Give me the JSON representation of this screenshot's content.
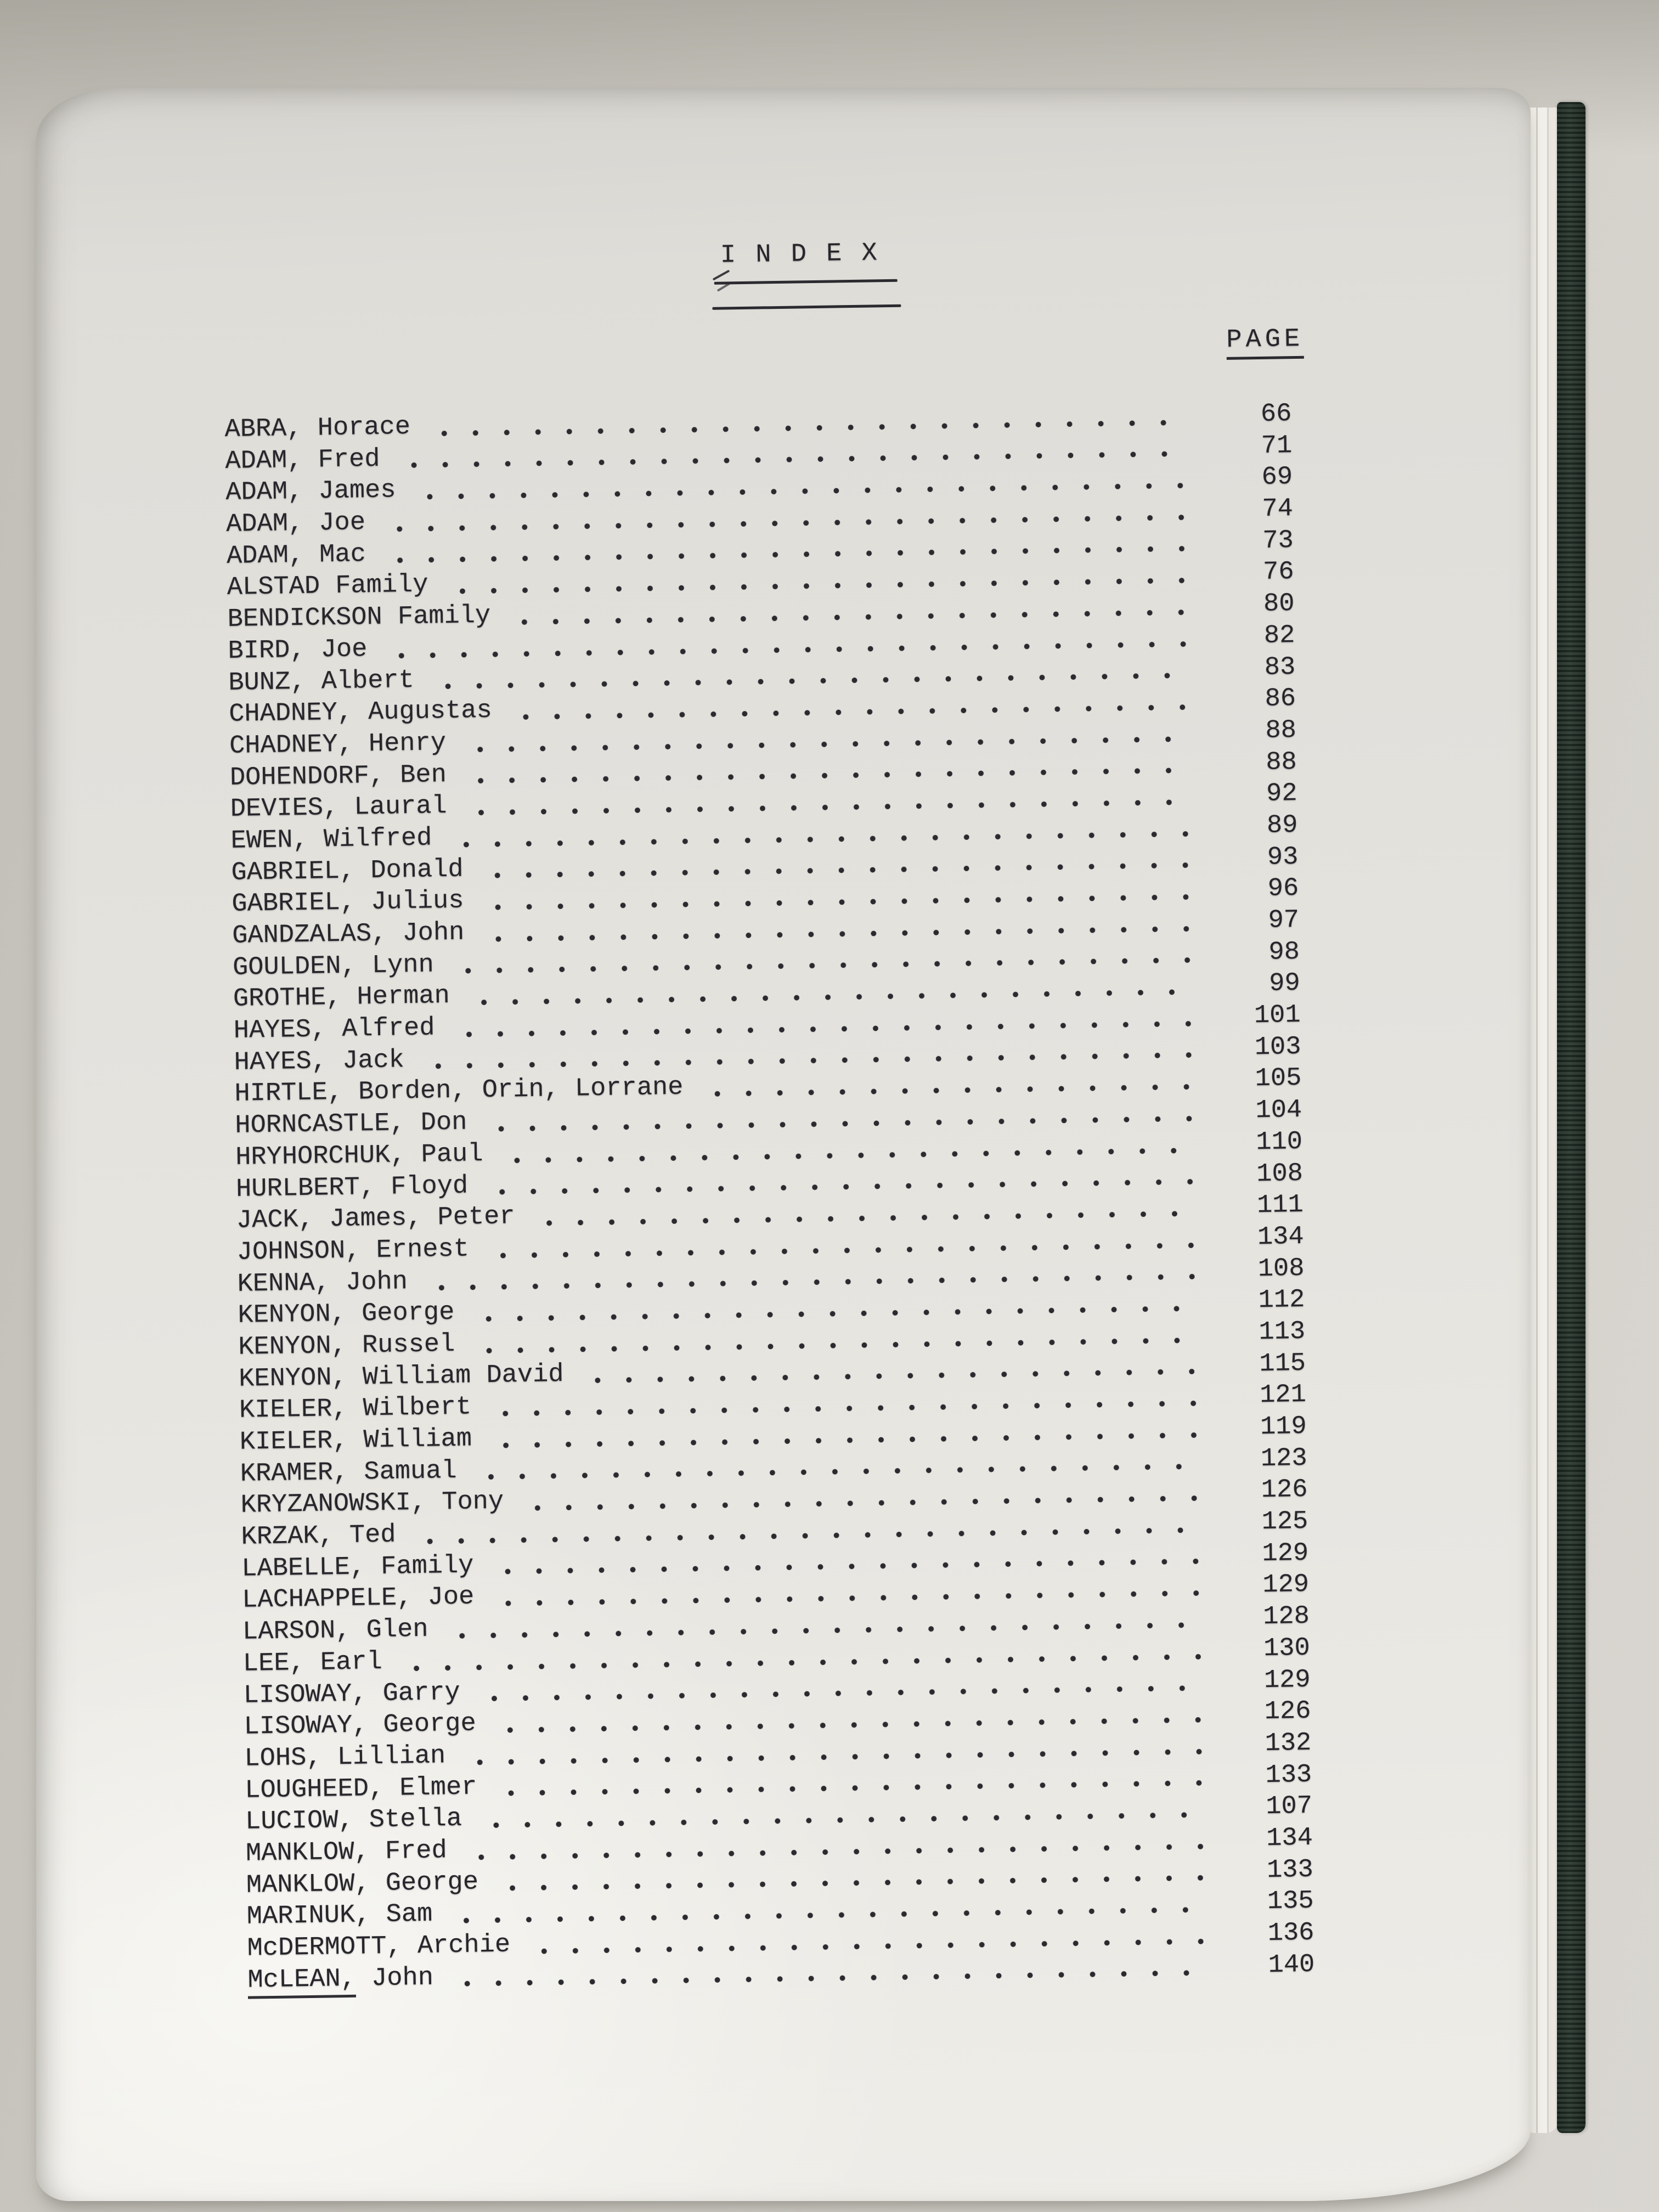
{
  "photo": {
    "background_color": "#cdcac3",
    "page_color": "#e4e2dd",
    "binding_color": "#2b3a30",
    "ink_color": "#26262b"
  },
  "page": {
    "title": "I N D E X",
    "column_header": "PAGE"
  },
  "entries": [
    {
      "name": "ABRA, Horace",
      "page": "66"
    },
    {
      "name": "ADAM, Fred",
      "page": "71"
    },
    {
      "name": "ADAM, James",
      "page": "69"
    },
    {
      "name": "ADAM, Joe",
      "page": "74"
    },
    {
      "name": "ADAM, Mac",
      "page": "73"
    },
    {
      "name": "ALSTAD Family",
      "page": "76"
    },
    {
      "name": "BENDICKSON Family",
      "page": "80"
    },
    {
      "name": "BIRD, Joe",
      "page": "82"
    },
    {
      "name": "BUNZ, Albert",
      "page": "83"
    },
    {
      "name": "CHADNEY, Augustas",
      "page": "86"
    },
    {
      "name": "CHADNEY, Henry",
      "page": "88"
    },
    {
      "name": "DOHENDORF, Ben",
      "page": "88"
    },
    {
      "name": "DEVIES, Laural",
      "page": "92"
    },
    {
      "name": "EWEN, Wilfred",
      "page": "89"
    },
    {
      "name": "GABRIEL, Donald",
      "page": "93"
    },
    {
      "name": "GABRIEL, Julius",
      "page": "96"
    },
    {
      "name": "GANDZALAS, John",
      "page": "97"
    },
    {
      "name": "GOULDEN, Lynn",
      "page": "98"
    },
    {
      "name": "GROTHE, Herman",
      "page": "99"
    },
    {
      "name": "HAYES, Alfred",
      "page": "101"
    },
    {
      "name": "HAYES, Jack",
      "page": "103"
    },
    {
      "name": "HIRTLE, Borden, Orin, Lorrane",
      "page": "105"
    },
    {
      "name": "HORNCASTLE, Don",
      "page": "104"
    },
    {
      "name": "HRYHORCHUK, Paul",
      "page": "110"
    },
    {
      "name": "HURLBERT, Floyd",
      "page": "108"
    },
    {
      "name": "JACK, James, Peter",
      "page": "111"
    },
    {
      "name": "JOHNSON, Ernest",
      "page": "134"
    },
    {
      "name": "KENNA, John",
      "page": "108"
    },
    {
      "name": "KENYON, George",
      "page": "112"
    },
    {
      "name": "KENYON, Russel",
      "page": "113"
    },
    {
      "name": "KENYON, William David",
      "page": "115"
    },
    {
      "name": "KIELER, Wilbert",
      "page": "121"
    },
    {
      "name": "KIELER, William",
      "page": "119"
    },
    {
      "name": "KRAMER, Samual",
      "page": "123"
    },
    {
      "name": "KRYZANOWSKI, Tony",
      "page": "126"
    },
    {
      "name": "KRZAK, Ted",
      "page": "125"
    },
    {
      "name": "LABELLE, Family",
      "page": "129"
    },
    {
      "name": "LACHAPPELE, Joe",
      "page": "129"
    },
    {
      "name": "LARSON, Glen",
      "page": "128"
    },
    {
      "name": "LEE, Earl",
      "page": "130"
    },
    {
      "name": "LISOWAY, Garry",
      "page": "129"
    },
    {
      "name": "LISOWAY, George",
      "page": "126"
    },
    {
      "name": "LOHS, Lillian",
      "page": "132"
    },
    {
      "name": "LOUGHEED, Elmer",
      "page": "133"
    },
    {
      "name": "LUCIOW, Stella",
      "page": "107"
    },
    {
      "name": "MANKLOW, Fred",
      "page": "134"
    },
    {
      "name": "MANKLOW, George",
      "page": "133"
    },
    {
      "name": "MARINUK, Sam",
      "page": "135"
    },
    {
      "name": "McDERMOTT, Archie",
      "page": "136"
    },
    {
      "name": "McLEAN, John",
      "page": "140",
      "underline": "McLEAN,",
      "rest": " John"
    }
  ]
}
